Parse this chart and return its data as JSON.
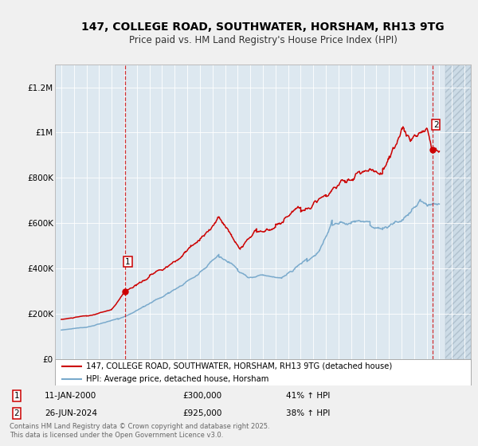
{
  "title": "147, COLLEGE ROAD, SOUTHWATER, HORSHAM, RH13 9TG",
  "subtitle": "Price paid vs. HM Land Registry's House Price Index (HPI)",
  "title_fontsize": 10,
  "subtitle_fontsize": 8.5,
  "background_color": "#f0f0f0",
  "plot_background": "#dde8f0",
  "plot_background_right": "#c8d8e8",
  "red_color": "#cc0000",
  "blue_color": "#7aaacc",
  "grid_color": "#ffffff",
  "xlim_left": 1994.5,
  "xlim_right": 2027.5,
  "ylim": [
    0,
    1300000
  ],
  "yticks": [
    0,
    200000,
    400000,
    600000,
    800000,
    1000000,
    1200000
  ],
  "ytick_labels": [
    "£0",
    "£200K",
    "£400K",
    "£600K",
    "£800K",
    "£1M",
    "£1.2M"
  ],
  "xticks": [
    1995,
    1996,
    1997,
    1998,
    1999,
    2000,
    2001,
    2002,
    2003,
    2004,
    2005,
    2006,
    2007,
    2008,
    2009,
    2010,
    2011,
    2012,
    2013,
    2014,
    2015,
    2016,
    2017,
    2018,
    2019,
    2020,
    2021,
    2022,
    2023,
    2024,
    2025,
    2026,
    2027
  ],
  "hatch_start": 2025.5,
  "sale1_x": 2000.04,
  "sale1_y": 300000,
  "sale2_x": 2024.48,
  "sale2_y": 925000,
  "sale1_date": "11-JAN-2000",
  "sale1_price": "£300,000",
  "sale1_hpi": "41% ↑ HPI",
  "sale2_date": "26-JUN-2024",
  "sale2_price": "£925,000",
  "sale2_hpi": "38% ↑ HPI",
  "legend_label_red": "147, COLLEGE ROAD, SOUTHWATER, HORSHAM, RH13 9TG (detached house)",
  "legend_label_blue": "HPI: Average price, detached house, Horsham",
  "footer": "Contains HM Land Registry data © Crown copyright and database right 2025.\nThis data is licensed under the Open Government Licence v3.0."
}
